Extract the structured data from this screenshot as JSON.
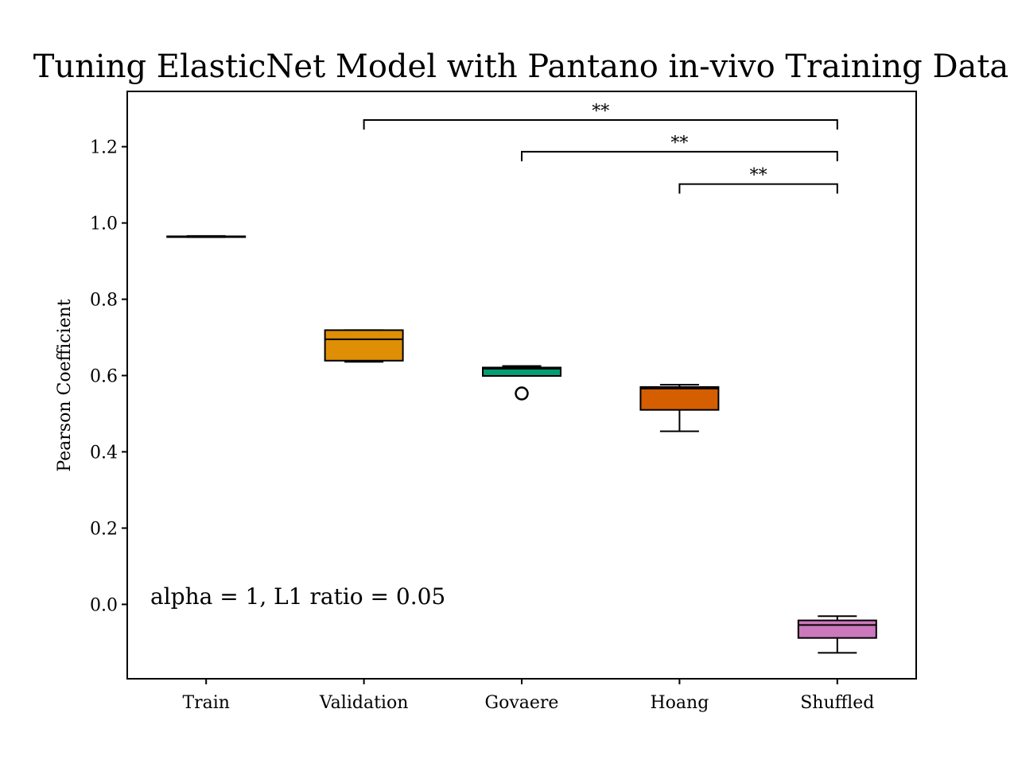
{
  "chart_data": {
    "type": "box",
    "title": "Tuning ElasticNet Model with Pantano in-vivo Training Data",
    "xlabel": "",
    "ylabel": "Pearson Coefficient",
    "ylim": [
      -0.195,
      1.345
    ],
    "yticks": [
      0.0,
      0.2,
      0.4,
      0.6,
      0.8,
      1.0,
      1.2
    ],
    "ytick_labels": [
      "0.0",
      "0.2",
      "0.4",
      "0.6",
      "0.8",
      "1.0",
      "1.2"
    ],
    "categories": [
      "Train",
      "Validation",
      "Govaere",
      "Hoang",
      "Shuffled"
    ],
    "grid": false,
    "boxes": [
      {
        "category": "Train",
        "color": "#000000",
        "whislo": 0.963,
        "q1": 0.963,
        "med": 0.964,
        "q3": 0.965,
        "whishi": 0.966,
        "fliers": []
      },
      {
        "category": "Validation",
        "color": "#de8f05",
        "whislo": 0.636,
        "q1": 0.639,
        "med": 0.695,
        "q3": 0.719,
        "whishi": 0.719,
        "fliers": []
      },
      {
        "category": "Govaere",
        "color": "#029e73",
        "whislo": 0.599,
        "q1": 0.599,
        "med": 0.618,
        "q3": 0.621,
        "whishi": 0.625,
        "fliers": [
          0.553
        ]
      },
      {
        "category": "Hoang",
        "color": "#d55e00",
        "whislo": 0.454,
        "q1": 0.51,
        "med": 0.566,
        "q3": 0.57,
        "whishi": 0.576,
        "fliers": []
      },
      {
        "category": "Shuffled",
        "color": "#cc78bc",
        "whislo": -0.127,
        "q1": -0.088,
        "med": -0.054,
        "q3": -0.042,
        "whishi": -0.031,
        "fliers": []
      }
    ],
    "significance": [
      {
        "from": "Validation",
        "to": "Shuffled",
        "y": 1.27,
        "label": "**"
      },
      {
        "from": "Govaere",
        "to": "Shuffled",
        "y": 1.187,
        "label": "**"
      },
      {
        "from": "Hoang",
        "to": "Shuffled",
        "y": 1.102,
        "label": "**"
      }
    ],
    "annotation": "alpha = 1, L1 ratio = 0.05"
  }
}
